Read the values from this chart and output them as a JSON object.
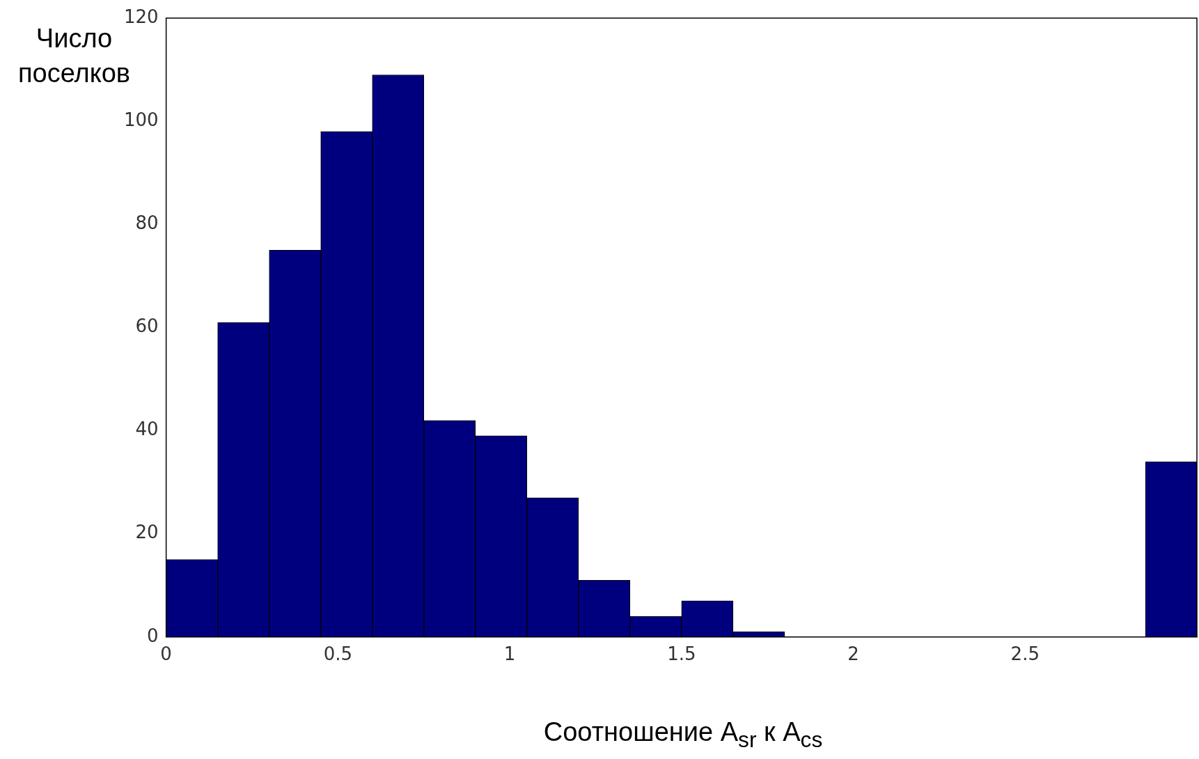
{
  "chart_data": {
    "type": "histogram",
    "xlabel": "Соотношение A$_{sr}$ к A$_{cs}$",
    "ylabel": "Число поселков",
    "bins": [
      0,
      0.15,
      0.3,
      0.45,
      0.6,
      0.75,
      0.9,
      1.05,
      1.2,
      1.35,
      1.5,
      1.65,
      1.8,
      1.95,
      2.1,
      2.25,
      2.4,
      2.55,
      2.7,
      2.85,
      3.0
    ],
    "values": [
      15,
      61,
      75,
      98,
      109,
      42,
      39,
      27,
      11,
      4,
      7,
      1,
      0,
      0,
      0,
      0,
      0,
      0,
      0,
      34
    ],
    "color": "#00007f",
    "xlim": [
      0,
      3.0
    ],
    "xticks": [
      0,
      0.5,
      1,
      1.5,
      2,
      2.5
    ],
    "ylim": [
      0,
      120
    ],
    "yticks": [
      0,
      20,
      40,
      60,
      80,
      100,
      120
    ],
    "grid": false,
    "legend": false
  }
}
